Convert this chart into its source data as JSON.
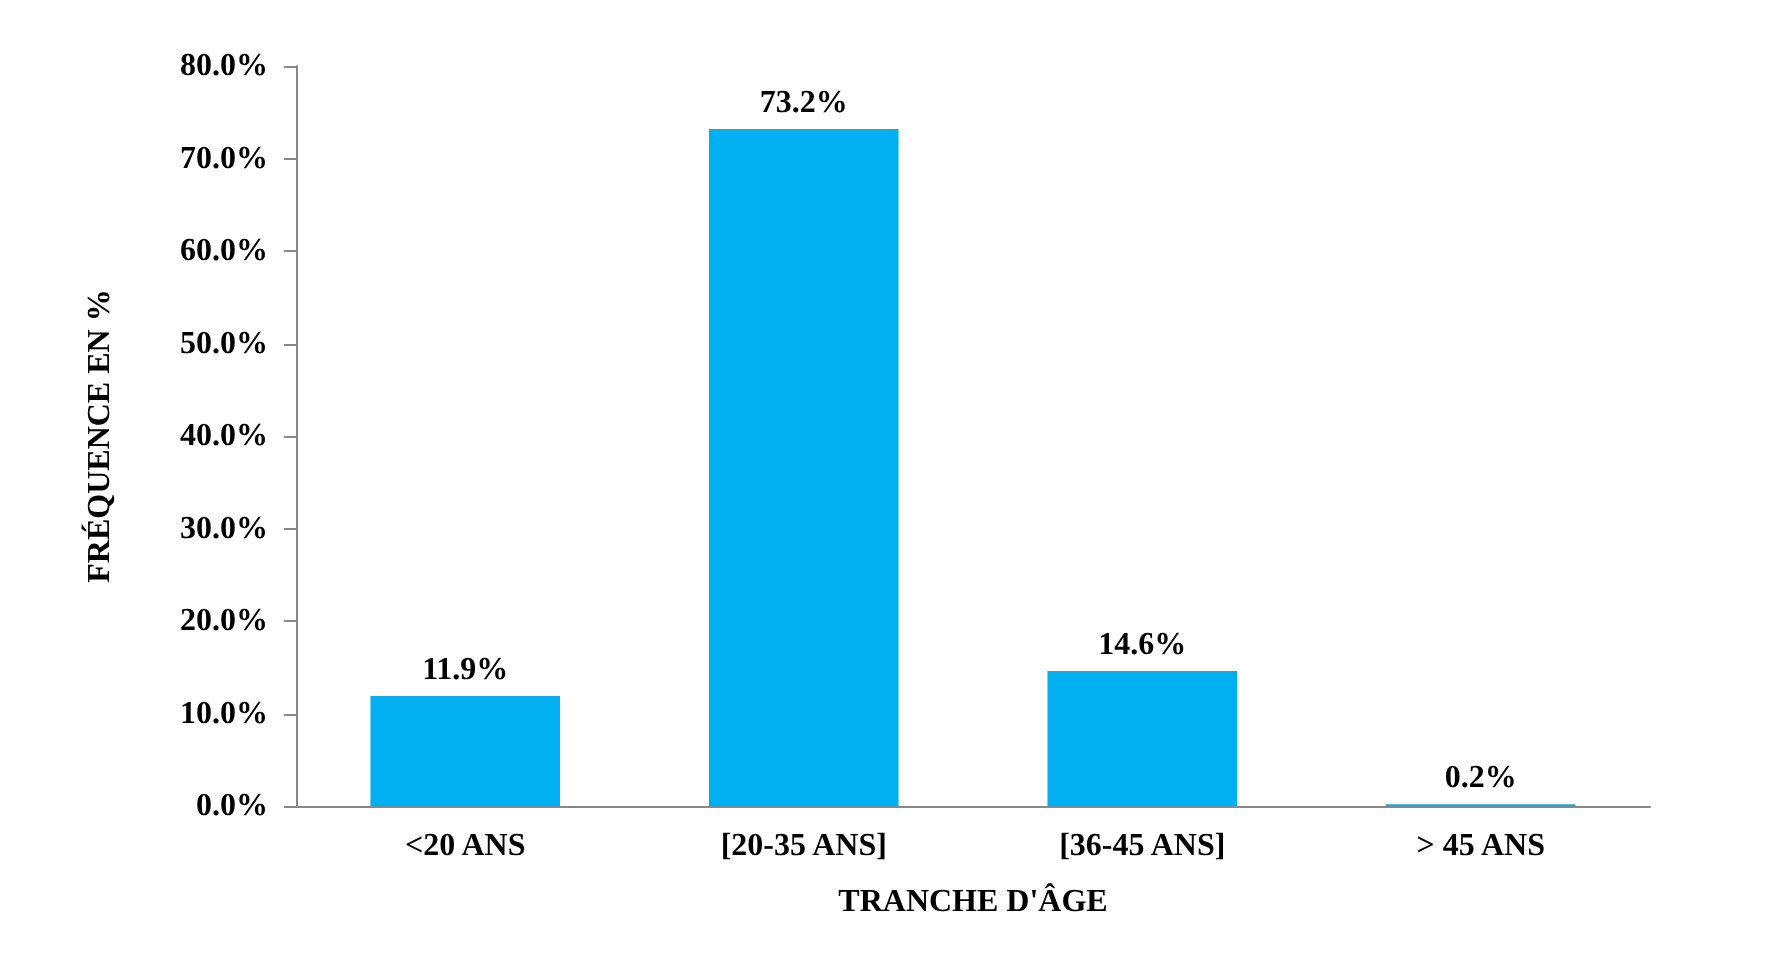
{
  "chart_data": {
    "type": "bar",
    "xlabel": "TRANCHE D'ÂGE",
    "ylabel": "FRÉQUENCE EN %",
    "categories": [
      "<20 ANS",
      "[20-35 ANS]",
      "[36-45 ANS]",
      "> 45 ANS"
    ],
    "values": [
      11.9,
      73.2,
      14.6,
      0.2
    ],
    "value_labels": [
      "11.9%",
      "73.2%",
      "14.6%",
      "0.2%"
    ],
    "color": "#00b0f0",
    "ylim": [
      0,
      80
    ],
    "yticks": [
      {
        "value": 0,
        "label": "0.0%"
      },
      {
        "value": 10,
        "label": "10.0%"
      },
      {
        "value": 20,
        "label": "20.0%"
      },
      {
        "value": 30,
        "label": "30.0%"
      },
      {
        "value": 40,
        "label": "40.0%"
      },
      {
        "value": 50,
        "label": "50.0%"
      },
      {
        "value": 60,
        "label": "60.0%"
      },
      {
        "value": 70,
        "label": "70.0%"
      },
      {
        "value": 80,
        "label": "80.0%"
      }
    ],
    "grid": false
  }
}
